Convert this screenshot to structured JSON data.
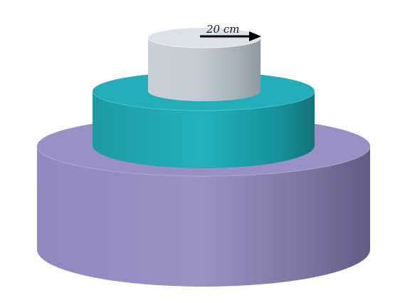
{
  "figure": {
    "radius_label": "20 cm",
    "tiers": [
      {
        "name": "bottom-tier",
        "color": "#8f86bd",
        "color_dark": "#665e8a",
        "top_color": "#9a90c6"
      },
      {
        "name": "middle-tier",
        "color": "#1fa6b0",
        "color_dark": "#147880",
        "top_color": "#21aeb8"
      },
      {
        "name": "top-tier",
        "color": "#bfc9d0",
        "color_dark": "#8f9ba4",
        "top_color": "#dde3e8"
      }
    ],
    "arrow_color": "#000000"
  }
}
